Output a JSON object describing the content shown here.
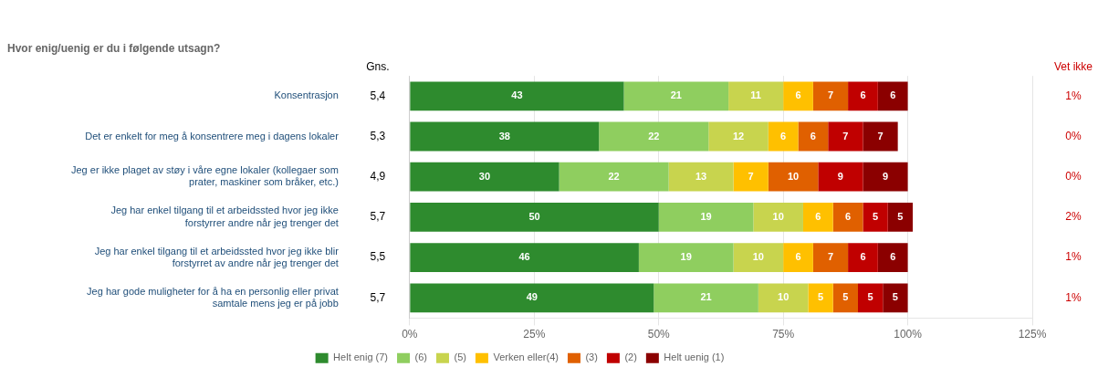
{
  "chart_data": {
    "type": "bar",
    "orientation": "horizontal",
    "stacked": true,
    "title": "Hvor enig/uenig er du i følgende utsagn?",
    "categories": [
      "Konsentrasjon",
      "Det er enkelt for meg å konsentrere meg i dagens lokaler",
      "Jeg er ikke plaget av støy i våre egne lokaler (kollegaer som\nprater, maskiner som bråker, etc.)",
      "Jeg har enkel tilgang til et arbeidssted hvor jeg ikke\nforstyrrer andre når jeg trenger det",
      "Jeg har enkel tilgang til et arbeidssted hvor jeg ikke blir\nforstyrret av andre når jeg trenger det",
      "Jeg har gode muligheter for å ha en personlig eller privat\nsamtale mens jeg er på jobb"
    ],
    "series": [
      {
        "name": "Helt enig (7)",
        "color": "#2e8b2e",
        "values": [
          43,
          38,
          30,
          50,
          46,
          49
        ]
      },
      {
        "name": "(6)",
        "color": "#8fce5f",
        "values": [
          21,
          22,
          22,
          19,
          19,
          21
        ]
      },
      {
        "name": "(5)",
        "color": "#c8d44e",
        "values": [
          11,
          12,
          13,
          10,
          10,
          10
        ]
      },
      {
        "name": "Verken eller(4)",
        "color": "#ffc000",
        "values": [
          6,
          6,
          7,
          6,
          6,
          5
        ]
      },
      {
        "name": "(3)",
        "color": "#e06000",
        "values": [
          7,
          6,
          10,
          6,
          7,
          5
        ]
      },
      {
        "name": "(2)",
        "color": "#c00000",
        "values": [
          6,
          7,
          9,
          5,
          6,
          5
        ]
      },
      {
        "name": "Helt uenig (1)",
        "color": "#8b0000",
        "values": [
          6,
          7,
          9,
          5,
          6,
          5
        ]
      }
    ],
    "xlim": [
      0,
      125
    ],
    "xticks": [
      {
        "value": 0,
        "label": "0%"
      },
      {
        "value": 25,
        "label": "25%"
      },
      {
        "value": 50,
        "label": "50%"
      },
      {
        "value": 75,
        "label": "75%"
      },
      {
        "value": 100,
        "label": "100%"
      },
      {
        "value": 125,
        "label": "125%"
      }
    ],
    "grid": true,
    "legend": "bottom",
    "data_labels": true,
    "annotations": [
      {
        "text": "Gns.",
        "color": "#000000",
        "labels": [
          "5,4",
          "5,3",
          "4,9",
          "5,7",
          "5,5",
          "5,7"
        ]
      },
      {
        "text": "Vet ikke",
        "color": "#cc0000",
        "labels": [
          "1%",
          "0%",
          "0%",
          "2%",
          "1%",
          "1%"
        ]
      }
    ]
  }
}
